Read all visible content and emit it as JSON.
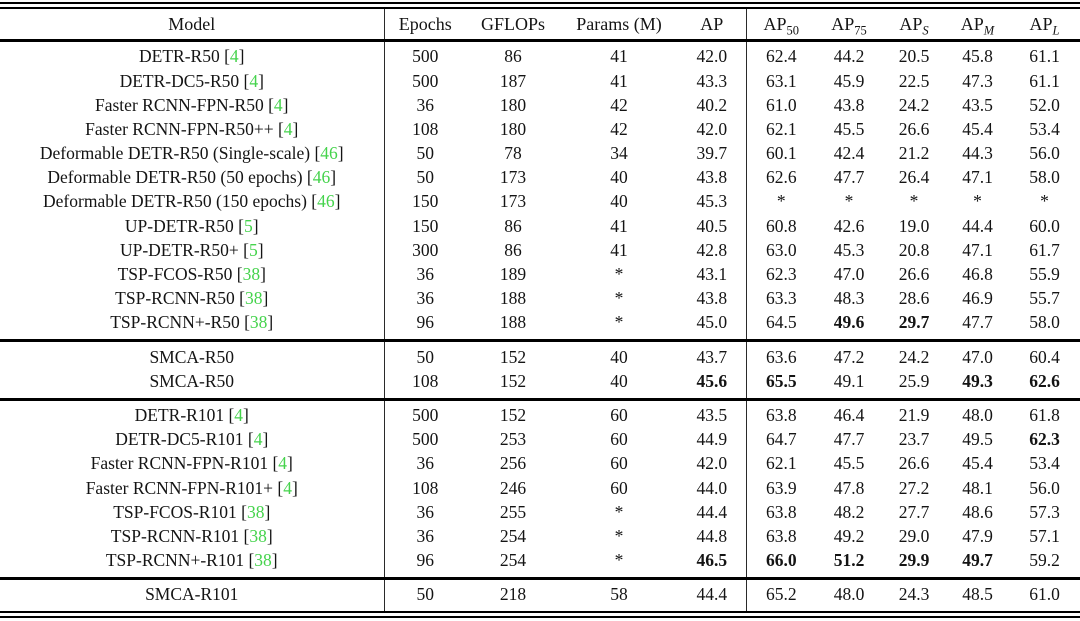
{
  "table": {
    "citation_color": "#45d34c",
    "header": {
      "model": "Model",
      "epochs": "Epochs",
      "gflops": "GFLOPs",
      "params": "Params (M)",
      "ap": "AP",
      "ap50": {
        "base": "AP",
        "sub": "50"
      },
      "ap75": {
        "base": "AP",
        "sub": "75"
      },
      "aps": {
        "base": "AP",
        "sub": "S"
      },
      "apm": {
        "base": "AP",
        "sub": "M"
      },
      "apl": {
        "base": "AP",
        "sub": "L"
      }
    },
    "sections": [
      {
        "rows": [
          {
            "model": "DETR-R50",
            "cite": "4",
            "cells": [
              "500",
              "86",
              "41",
              "42.0",
              "62.4",
              "44.2",
              "20.5",
              "45.8",
              "61.1"
            ],
            "bold": []
          },
          {
            "model": "DETR-DC5-R50",
            "cite": "4",
            "cells": [
              "500",
              "187",
              "41",
              "43.3",
              "63.1",
              "45.9",
              "22.5",
              "47.3",
              "61.1"
            ],
            "bold": []
          },
          {
            "model": "Faster RCNN-FPN-R50",
            "cite": "4",
            "cells": [
              "36",
              "180",
              "42",
              "40.2",
              "61.0",
              "43.8",
              "24.2",
              "43.5",
              "52.0"
            ],
            "bold": []
          },
          {
            "model": "Faster RCNN-FPN-R50++",
            "cite": "4",
            "cells": [
              "108",
              "180",
              "42",
              "42.0",
              "62.1",
              "45.5",
              "26.6",
              "45.4",
              "53.4"
            ],
            "bold": []
          },
          {
            "model": "Deformable DETR-R50 (Single-scale)",
            "cite": "46",
            "cells": [
              "50",
              "78",
              "34",
              "39.7",
              "60.1",
              "42.4",
              "21.2",
              "44.3",
              "56.0"
            ],
            "bold": []
          },
          {
            "model": "Deformable DETR-R50 (50 epochs)",
            "cite": "46",
            "cells": [
              "50",
              "173",
              "40",
              "43.8",
              "62.6",
              "47.7",
              "26.4",
              "47.1",
              "58.0"
            ],
            "bold": []
          },
          {
            "model": "Deformable DETR-R50 (150 epochs)",
            "cite": "46",
            "cells": [
              "150",
              "173",
              "40",
              "45.3",
              "*",
              "*",
              "*",
              "*",
              "*"
            ],
            "bold": []
          },
          {
            "model": "UP-DETR-R50",
            "cite": "5",
            "cells": [
              "150",
              "86",
              "41",
              "40.5",
              "60.8",
              "42.6",
              "19.0",
              "44.4",
              "60.0"
            ],
            "bold": []
          },
          {
            "model": "UP-DETR-R50+",
            "cite": "5",
            "cells": [
              "300",
              "86",
              "41",
              "42.8",
              "63.0",
              "45.3",
              "20.8",
              "47.1",
              "61.7"
            ],
            "bold": []
          },
          {
            "model": "TSP-FCOS-R50",
            "cite": "38",
            "cells": [
              "36",
              "189",
              "*",
              "43.1",
              "62.3",
              "47.0",
              "26.6",
              "46.8",
              "55.9"
            ],
            "bold": []
          },
          {
            "model": "TSP-RCNN-R50",
            "cite": "38",
            "cells": [
              "36",
              "188",
              "*",
              "43.8",
              "63.3",
              "48.3",
              "28.6",
              "46.9",
              "55.7"
            ],
            "bold": []
          },
          {
            "model": "TSP-RCNN+-R50",
            "cite": "38",
            "cells": [
              "96",
              "188",
              "*",
              "45.0",
              "64.5",
              "49.6",
              "29.7",
              "47.7",
              "58.0"
            ],
            "bold": [
              5,
              6
            ]
          }
        ]
      },
      {
        "rows": [
          {
            "model": "SMCA-R50",
            "cite": null,
            "cells": [
              "50",
              "152",
              "40",
              "43.7",
              "63.6",
              "47.2",
              "24.2",
              "47.0",
              "60.4"
            ],
            "bold": []
          },
          {
            "model": "SMCA-R50",
            "cite": null,
            "cells": [
              "108",
              "152",
              "40",
              "45.6",
              "65.5",
              "49.1",
              "25.9",
              "49.3",
              "62.6"
            ],
            "bold": [
              3,
              4,
              7,
              8
            ]
          }
        ]
      },
      {
        "rows": [
          {
            "model": "DETR-R101",
            "cite": "4",
            "cells": [
              "500",
              "152",
              "60",
              "43.5",
              "63.8",
              "46.4",
              "21.9",
              "48.0",
              "61.8"
            ],
            "bold": []
          },
          {
            "model": "DETR-DC5-R101",
            "cite": "4",
            "cells": [
              "500",
              "253",
              "60",
              "44.9",
              "64.7",
              "47.7",
              "23.7",
              "49.5",
              "62.3"
            ],
            "bold": [
              8
            ]
          },
          {
            "model": "Faster RCNN-FPN-R101",
            "cite": "4",
            "cells": [
              "36",
              "256",
              "60",
              "42.0",
              "62.1",
              "45.5",
              "26.6",
              "45.4",
              "53.4"
            ],
            "bold": []
          },
          {
            "model": "Faster RCNN-FPN-R101+",
            "cite": "4",
            "cells": [
              "108",
              "246",
              "60",
              "44.0",
              "63.9",
              "47.8",
              "27.2",
              "48.1",
              "56.0"
            ],
            "bold": []
          },
          {
            "model": "TSP-FCOS-R101",
            "cite": "38",
            "cells": [
              "36",
              "255",
              "*",
              "44.4",
              "63.8",
              "48.2",
              "27.7",
              "48.6",
              "57.3"
            ],
            "bold": []
          },
          {
            "model": "TSP-RCNN-R101",
            "cite": "38",
            "cells": [
              "36",
              "254",
              "*",
              "44.8",
              "63.8",
              "49.2",
              "29.0",
              "47.9",
              "57.1"
            ],
            "bold": []
          },
          {
            "model": "TSP-RCNN+-R101",
            "cite": "38",
            "cells": [
              "96",
              "254",
              "*",
              "46.5",
              "66.0",
              "51.2",
              "29.9",
              "49.7",
              "59.2"
            ],
            "bold": [
              3,
              4,
              5,
              6,
              7
            ]
          }
        ]
      },
      {
        "rows": [
          {
            "model": "SMCA-R101",
            "cite": null,
            "cells": [
              "50",
              "218",
              "58",
              "44.4",
              "65.2",
              "48.0",
              "24.3",
              "48.5",
              "61.0"
            ],
            "bold": []
          }
        ]
      }
    ]
  }
}
